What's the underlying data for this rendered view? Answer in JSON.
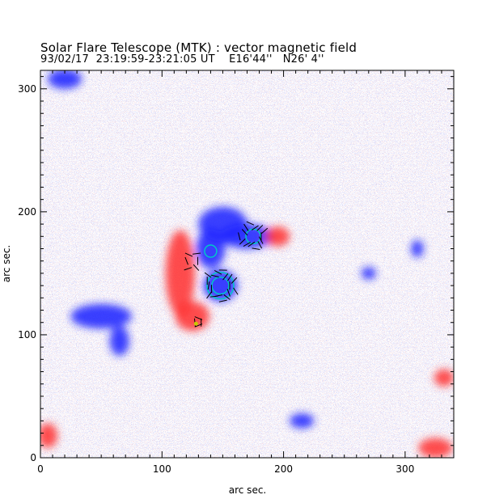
{
  "header": {
    "title": "Solar Flare Telescope (MTK) : vector magnetic field",
    "subtitle_date": "93/02/17",
    "subtitle_time": "23:19:59-23:21:05 UT",
    "subtitle_lon": "E16'44''",
    "subtitle_lat": "N26' 4''"
  },
  "chart_data": {
    "type": "heatmap",
    "xlabel": "arc sec.",
    "ylabel": "arc sec.",
    "xlim": [
      0,
      340
    ],
    "ylim": [
      0,
      315
    ],
    "x_ticks": [
      0,
      100,
      200,
      300
    ],
    "y_ticks": [
      0,
      100,
      200,
      300
    ],
    "x_tick_labels": [
      "0",
      "100",
      "200",
      "300"
    ],
    "y_tick_labels": [
      "0",
      "100",
      "200",
      "300"
    ],
    "grid": false,
    "colors": {
      "positive_polarity": "#ff3030",
      "negative_polarity": "#1a22ff",
      "contour": "#00c8c8",
      "vector": "#000000",
      "marker": "#c8c800"
    },
    "regions": [
      {
        "polarity": "negative",
        "x": 150,
        "y": 190,
        "rx": 20,
        "ry": 14
      },
      {
        "polarity": "negative",
        "x": 170,
        "y": 180,
        "rx": 22,
        "ry": 10
      },
      {
        "polarity": "negative",
        "x": 148,
        "y": 140,
        "rx": 14,
        "ry": 13
      },
      {
        "polarity": "negative",
        "x": 140,
        "y": 170,
        "rx": 12,
        "ry": 16
      },
      {
        "polarity": "negative",
        "x": 50,
        "y": 115,
        "rx": 25,
        "ry": 10
      },
      {
        "polarity": "negative",
        "x": 65,
        "y": 95,
        "rx": 8,
        "ry": 12
      },
      {
        "polarity": "negative",
        "x": 20,
        "y": 308,
        "rx": 14,
        "ry": 8
      },
      {
        "polarity": "positive",
        "x": 115,
        "y": 150,
        "rx": 12,
        "ry": 35
      },
      {
        "polarity": "positive",
        "x": 125,
        "y": 115,
        "rx": 14,
        "ry": 12
      },
      {
        "polarity": "positive",
        "x": 195,
        "y": 180,
        "rx": 10,
        "ry": 8
      },
      {
        "polarity": "positive",
        "x": 6,
        "y": 18,
        "rx": 8,
        "ry": 10
      },
      {
        "polarity": "positive",
        "x": 325,
        "y": 8,
        "rx": 14,
        "ry": 8
      },
      {
        "polarity": "positive",
        "x": 332,
        "y": 65,
        "rx": 8,
        "ry": 7
      },
      {
        "polarity": "negative",
        "x": 215,
        "y": 30,
        "rx": 10,
        "ry": 6
      },
      {
        "polarity": "negative",
        "x": 270,
        "y": 150,
        "rx": 6,
        "ry": 5
      },
      {
        "polarity": "negative",
        "x": 310,
        "y": 170,
        "rx": 5,
        "ry": 7
      }
    ],
    "contours": [
      {
        "x": 148,
        "y": 140,
        "r": 7
      },
      {
        "x": 148,
        "y": 140,
        "r": 11
      },
      {
        "x": 140,
        "y": 168,
        "r": 5
      },
      {
        "x": 175,
        "y": 180,
        "r": 6
      }
    ],
    "vector_clusters": [
      {
        "x": 148,
        "y": 140,
        "radius": 14,
        "count": 18
      },
      {
        "x": 175,
        "y": 180,
        "radius": 12,
        "count": 14
      },
      {
        "x": 125,
        "y": 160,
        "radius": 8,
        "count": 6
      },
      {
        "x": 130,
        "y": 110,
        "radius": 4,
        "count": 4
      }
    ],
    "marker": {
      "x": 128,
      "y": 109
    }
  }
}
